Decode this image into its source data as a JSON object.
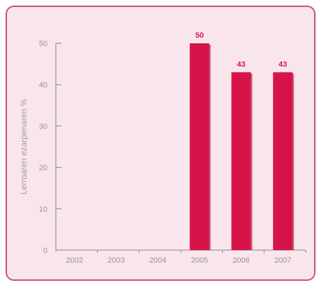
{
  "colors": {
    "bar": "#d6144a",
    "bar_shadow": "#a80f39",
    "data_label": "#d6145a",
    "axis": "#8c8286"
  },
  "chart_data": {
    "type": "bar",
    "categories": [
      "2002",
      "2003",
      "2004",
      "2005",
      "2006",
      "2007"
    ],
    "values": [
      null,
      null,
      null,
      50,
      43,
      43
    ],
    "data_labels": [
      "",
      "",
      "",
      "50",
      "43",
      "43"
    ],
    "ylabel": "Lerroaren ezarpenaren %",
    "xlabel": "",
    "ylim": [
      0,
      50
    ],
    "yticks": [
      0,
      10,
      20,
      30,
      40,
      50
    ],
    "grid": false
  }
}
